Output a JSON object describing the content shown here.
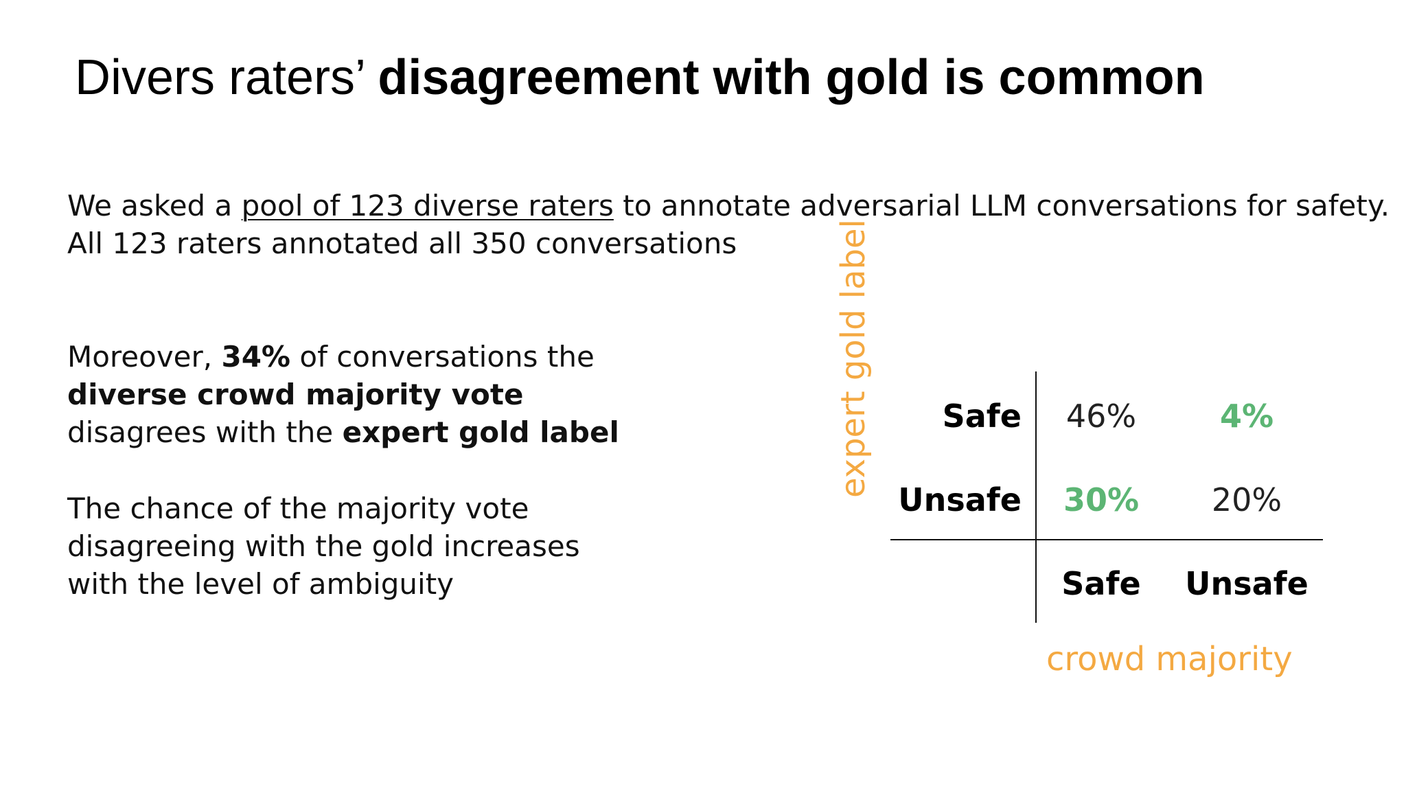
{
  "title": {
    "normal": "Divers raters’ ",
    "bold": "disagreement with gold is common"
  },
  "intro": {
    "line1_before": "We asked a ",
    "line1_link": "pool of 123 diverse raters",
    "line1_after": " to annotate adversarial LLM conversations for safety.",
    "line2": "All 123 raters annotated all 350 conversations"
  },
  "finding": {
    "l1_before": "Moreover, ",
    "l1_bold": "34%",
    "l1_after": " of conversations the",
    "l2_bold": "diverse crowd majority vote",
    "l3_before": "disagrees with the ",
    "l3_bold": "expert gold label"
  },
  "ambiguity": {
    "l1": "The chance of the majority vote",
    "l2": "disagreeing with the gold increases",
    "l3": "with the level of ambiguity"
  },
  "chart_data": {
    "type": "table",
    "ylabel": "expert gold label",
    "xlabel": "crowd majority",
    "rows": [
      "Safe",
      "Unsafe"
    ],
    "columns": [
      "Safe",
      "Unsafe"
    ],
    "values": [
      [
        "46%",
        "4%"
      ],
      [
        "30%",
        "20%"
      ]
    ],
    "highlight_color": "#5cb574",
    "axis_label_color": "#f4a942"
  }
}
